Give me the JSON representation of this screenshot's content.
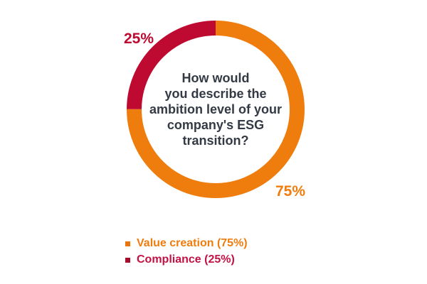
{
  "chart_data": {
    "type": "pie",
    "subtype": "donut",
    "title": "How would you describe the ambition level of your company's ESG transition?",
    "title_lines": [
      "How would",
      "you describe the",
      "ambition level of your",
      "company's ESG",
      "transition?"
    ],
    "start_angle_deg": 0,
    "direction": "clockwise",
    "legend_position": "bottom-left",
    "segments": [
      {
        "label": "Value creation",
        "value": 75,
        "callout": "75%",
        "legend_label": "Value creation (75%)",
        "color": "#EE7D0E",
        "label_color": "#EE7D0E",
        "square_color": "#E8740A"
      },
      {
        "label": "Compliance",
        "value": 25,
        "callout": "25%",
        "legend_label": "Compliance (25%)",
        "color": "#BE0A30",
        "label_color": "#BE0A30",
        "square_color": "#A60D2D",
        "legend_text_color": "#C31144"
      }
    ]
  },
  "colors": {
    "background": "#FFFFFF",
    "question_text": "#333A44"
  }
}
